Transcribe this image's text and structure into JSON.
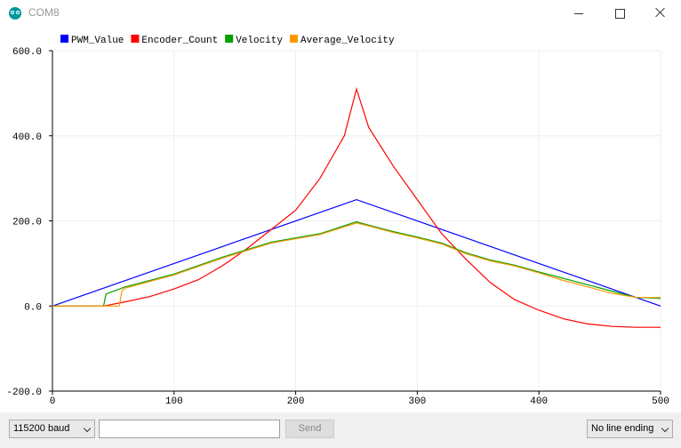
{
  "window": {
    "title": "COM8",
    "icon": "arduino-icon",
    "controls": [
      "minimize-icon",
      "maximize-icon",
      "close-icon"
    ]
  },
  "chart_data": {
    "type": "line",
    "xlim": [
      0,
      500
    ],
    "ylim": [
      -200,
      600
    ],
    "xticks": [
      "0",
      "100",
      "200",
      "300",
      "400",
      "500"
    ],
    "yticks": [
      "600.0",
      "400.0",
      "200.0",
      "0.0",
      "-200.0"
    ],
    "grid": true,
    "legend_position": "top-left",
    "series": [
      {
        "name": "PWM_Value",
        "color": "#0000ff",
        "x": [
          0,
          250,
          500
        ],
        "y": [
          0,
          250,
          0
        ]
      },
      {
        "name": "Encoder_Count",
        "color": "#ff0000",
        "x": [
          0,
          42,
          60,
          80,
          100,
          120,
          140,
          160,
          180,
          200,
          220,
          240,
          250,
          260,
          280,
          300,
          320,
          340,
          360,
          380,
          400,
          420,
          440,
          460,
          480,
          500
        ],
        "y": [
          0,
          0,
          10,
          22,
          40,
          62,
          95,
          135,
          180,
          225,
          300,
          400,
          510,
          420,
          330,
          250,
          170,
          110,
          55,
          15,
          -10,
          -30,
          -42,
          -48,
          -50,
          -50
        ]
      },
      {
        "name": "Velocity",
        "color": "#00a000",
        "x": [
          0,
          42,
          44,
          60,
          100,
          140,
          180,
          220,
          250,
          260,
          280,
          300,
          320,
          340,
          360,
          380,
          400,
          420,
          440,
          460,
          480,
          500
        ],
        "y": [
          0,
          0,
          28,
          45,
          75,
          115,
          150,
          170,
          198,
          190,
          175,
          162,
          148,
          125,
          108,
          96,
          80,
          65,
          50,
          35,
          20,
          18
        ]
      },
      {
        "name": "Average_Velocity",
        "color": "#ff9900",
        "x": [
          0,
          55,
          57,
          60,
          100,
          140,
          180,
          220,
          250,
          260,
          280,
          300,
          320,
          340,
          360,
          380,
          400,
          420,
          440,
          460,
          480,
          500
        ],
        "y": [
          0,
          0,
          35,
          42,
          73,
          113,
          148,
          168,
          195,
          188,
          173,
          160,
          146,
          123,
          106,
          94,
          78,
          60,
          45,
          30,
          20,
          20
        ]
      }
    ]
  },
  "bottom": {
    "baud": "115200 baud",
    "message_value": "",
    "send_label": "Send",
    "line_ending": "No line ending"
  }
}
